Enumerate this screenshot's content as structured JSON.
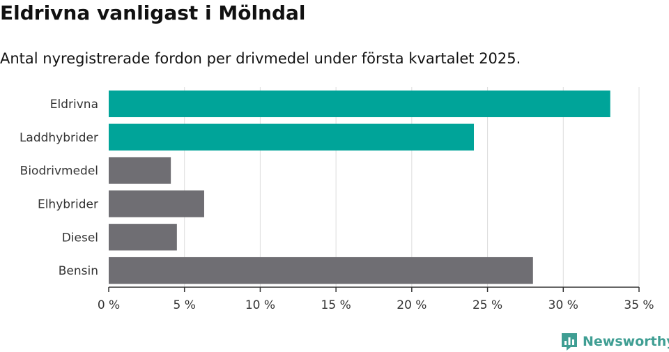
{
  "header": {
    "title": "Eldrivna vanligast i Mölndal",
    "subtitle": "Antal nyregistrerade fordon per drivmedel under första kvartalet 2025."
  },
  "chart_data": {
    "type": "bar",
    "orientation": "horizontal",
    "categories": [
      "Eldrivna",
      "Laddhybrider",
      "Biodrivmedel",
      "Elhybrider",
      "Diesel",
      "Bensin"
    ],
    "values": [
      33.1,
      24.1,
      4.1,
      6.3,
      4.5,
      28.0
    ],
    "highlighted": [
      true,
      true,
      false,
      false,
      false,
      false
    ],
    "xlim": [
      0,
      35
    ],
    "xticks": [
      0,
      5,
      10,
      15,
      20,
      25,
      30,
      35
    ],
    "tick_suffix": " %",
    "grid": "vertical",
    "colors": {
      "highlight": "#00a499",
      "other": "#6f6e73"
    }
  },
  "footer": {
    "logo_text": "Newsworthy",
    "logo_color": "#3f9e93",
    "logo_icon": "bar-chart-bookmark-icon"
  }
}
